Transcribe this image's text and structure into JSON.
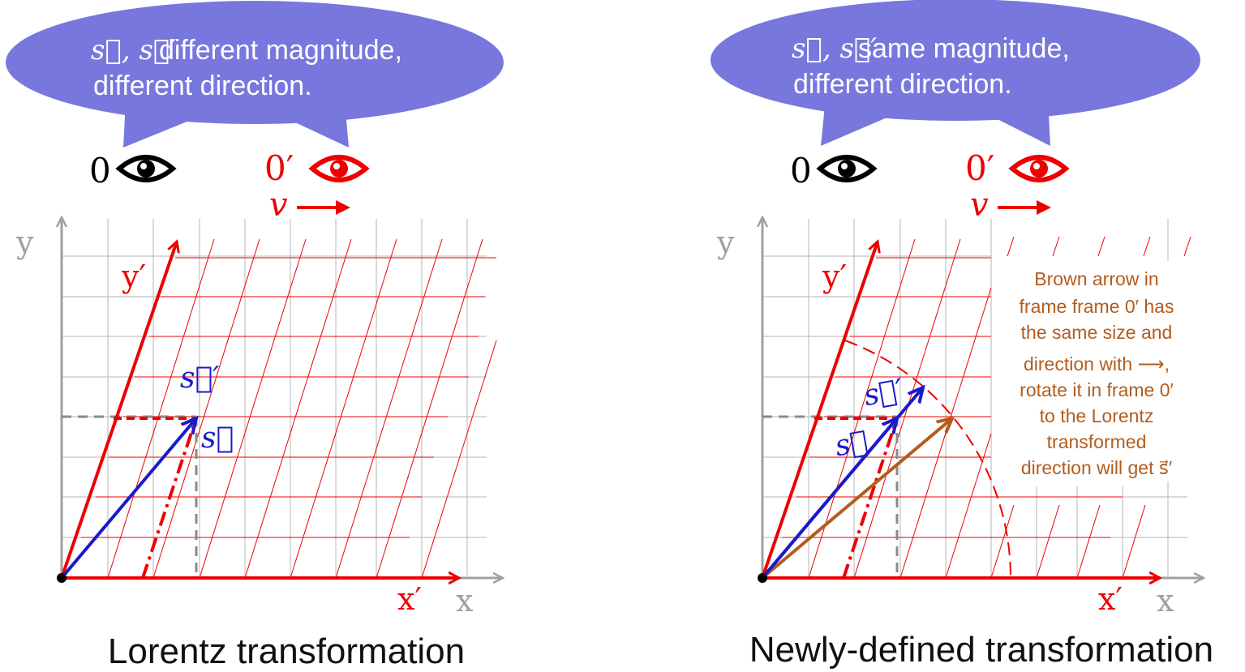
{
  "left_panel": {
    "bubble": {
      "vectors": "s⃗,  s⃗′",
      "line1": "different magnitude,",
      "line2": "different direction."
    },
    "observer_o": "0",
    "observer_o_prime": "0′",
    "velocity_label": "v",
    "axis_x": "x",
    "axis_y": "y",
    "axis_x_prime": "x′",
    "axis_y_prime": "y′",
    "vector_s": "s⃗",
    "vector_s_prime": "s⃗′",
    "caption": "Lorentz transformation"
  },
  "right_panel": {
    "bubble": {
      "vectors": "s⃗,  s⃗′",
      "line1": "same magnitude,",
      "line2": "different direction."
    },
    "observer_o": "0",
    "observer_o_prime": "0′",
    "velocity_label": "v",
    "axis_x": "x",
    "axis_y": "y",
    "axis_x_prime": "x′",
    "axis_y_prime": "y′",
    "vector_s": "s⃗",
    "vector_s_prime": "s⃗′",
    "note_lines": [
      "Brown arrow in",
      "frame frame 0′ has",
      "the same size and",
      "direction with ⟶,",
      "rotate it in frame 0′",
      "to the Lorentz",
      "transformed",
      "direction will get s⃗′"
    ],
    "caption": "Newly-defined transformation"
  },
  "colors": {
    "bubble": "#7777dd",
    "red": "#ee0000",
    "blue": "#1a1acc",
    "brown": "#b35c1e",
    "grid_gray": "#b4b4b4",
    "axis_gray": "#a0a0a0"
  },
  "icons": [
    "eye-icon",
    "right-arrow-icon"
  ]
}
